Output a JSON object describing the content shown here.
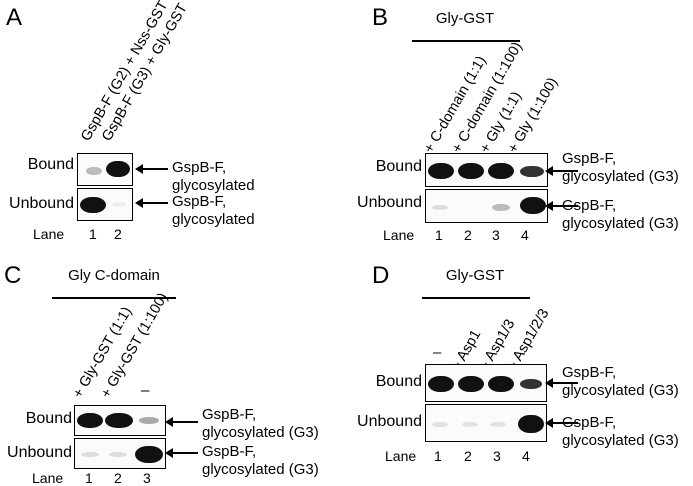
{
  "panels": {
    "A": {
      "letter": "A",
      "lanes_header": [
        "GspB-F (G2) + Nss-GST",
        "GspB-F (G3) + Gly-GST"
      ],
      "bound_label": "Bound",
      "unbound_label": "Unbound",
      "lane_label": "Lane",
      "lanes": [
        "1",
        "2"
      ],
      "bound_desc": [
        "GspB-F,",
        "glycosylated"
      ],
      "unbound_desc": [
        "GspB-F,",
        "glycosylated"
      ]
    },
    "B": {
      "letter": "B",
      "header": "Gly-GST",
      "lanes_header": [
        "+ C-domain (1:1)",
        "+ C-domain (1:100)",
        "+ Gly (1:1)",
        "+ Gly (1:100)"
      ],
      "bound_label": "Bound",
      "unbound_label": "Unbound",
      "lane_label": "Lane",
      "lanes": [
        "1",
        "2",
        "3",
        "4"
      ],
      "bound_desc": [
        "GspB-F,",
        "glycosylated (G3)"
      ],
      "unbound_desc": [
        "GspB-F,",
        "glycosylated (G3)"
      ]
    },
    "C": {
      "letter": "C",
      "header": "Gly C-domain",
      "lanes_header": [
        "+ Gly-GST (1:1)",
        "+ Gly-GST (1:100)",
        "–"
      ],
      "bound_label": "Bound",
      "unbound_label": "Unbound",
      "lane_label": "Lane",
      "lanes": [
        "1",
        "2",
        "3"
      ],
      "bound_desc": [
        "GspB-F,",
        "glycosylated (G3)"
      ],
      "unbound_desc": [
        "GspB-F,",
        "glycosylated (G3)"
      ]
    },
    "D": {
      "letter": "D",
      "header": "Gly-GST",
      "lanes_header": [
        "–",
        "+ Asp1",
        "+ Asp1/3",
        "+ Asp1/2/3"
      ],
      "bound_label": "Bound",
      "unbound_label": "Unbound",
      "lane_label": "Lane",
      "lanes": [
        "1",
        "2",
        "3",
        "4"
      ],
      "bound_desc": [
        "GspB-F,",
        "glycosylated (G3)"
      ],
      "unbound_desc": [
        "GspB-F,",
        "glycosylated (G3)"
      ]
    }
  }
}
